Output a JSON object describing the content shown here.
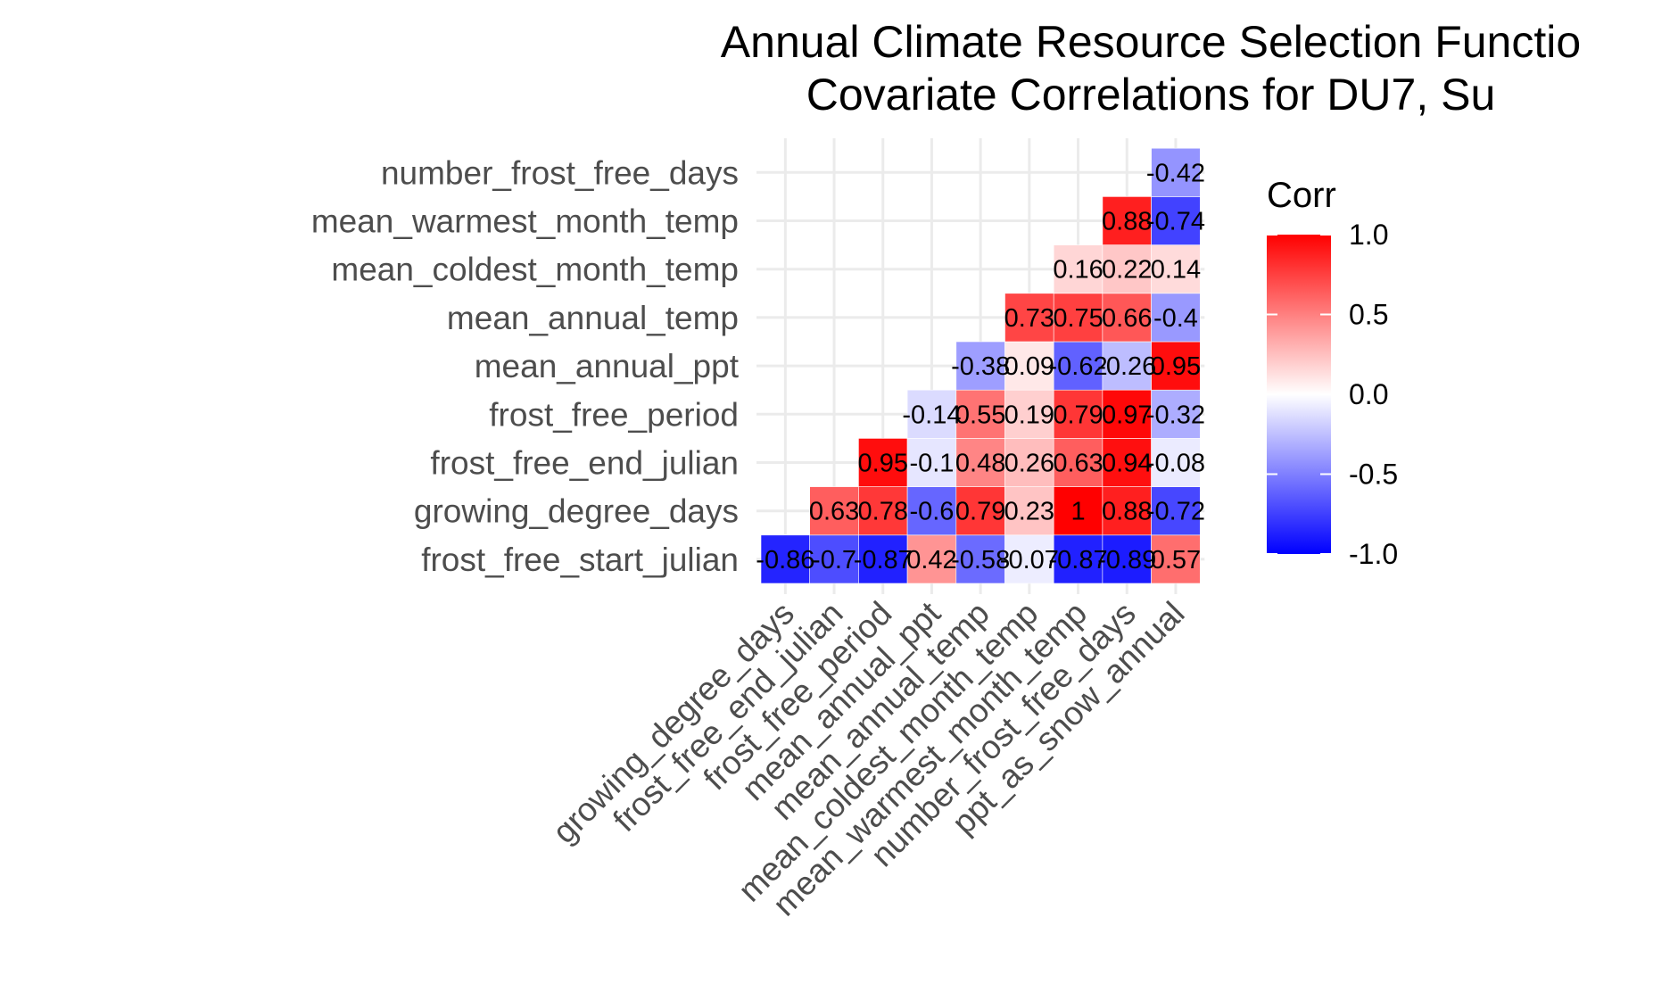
{
  "chart_data": {
    "type": "heatmap",
    "title_lines": [
      "Annual Climate Resource Selection Functio",
      "Covariate Correlations for DU7, Su"
    ],
    "x_categories": [
      "growing_degree_days",
      "frost_free_end_julian",
      "frost_free_period",
      "mean_annual_ppt",
      "mean_annual_temp",
      "mean_coldest_month_temp",
      "mean_warmest_month_temp",
      "number_frost_free_days",
      "ppt_as_snow_annual"
    ],
    "y_categories": [
      "frost_free_start_julian",
      "growing_degree_days",
      "frost_free_end_julian",
      "frost_free_period",
      "mean_annual_ppt",
      "mean_annual_temp",
      "mean_coldest_month_temp",
      "mean_warmest_month_temp",
      "number_frost_free_days"
    ],
    "cells": [
      {
        "row": 0,
        "col": 0,
        "value": -0.86,
        "label": "-0.86"
      },
      {
        "row": 0,
        "col": 1,
        "value": -0.7,
        "label": "-0.7"
      },
      {
        "row": 0,
        "col": 2,
        "value": -0.87,
        "label": "-0.87"
      },
      {
        "row": 0,
        "col": 3,
        "value": 0.42,
        "label": "0.42"
      },
      {
        "row": 0,
        "col": 4,
        "value": -0.58,
        "label": "-0.58"
      },
      {
        "row": 0,
        "col": 5,
        "value": -0.07,
        "label": "-0.07"
      },
      {
        "row": 0,
        "col": 6,
        "value": -0.87,
        "label": "-0.87"
      },
      {
        "row": 0,
        "col": 7,
        "value": -0.89,
        "label": "-0.89"
      },
      {
        "row": 0,
        "col": 8,
        "value": 0.57,
        "label": "0.57"
      },
      {
        "row": 1,
        "col": 1,
        "value": 0.63,
        "label": "0.63"
      },
      {
        "row": 1,
        "col": 2,
        "value": 0.78,
        "label": "0.78"
      },
      {
        "row": 1,
        "col": 3,
        "value": -0.6,
        "label": "-0.6"
      },
      {
        "row": 1,
        "col": 4,
        "value": 0.79,
        "label": "0.79"
      },
      {
        "row": 1,
        "col": 5,
        "value": 0.23,
        "label": "0.23"
      },
      {
        "row": 1,
        "col": 6,
        "value": 1,
        "label": "1"
      },
      {
        "row": 1,
        "col": 7,
        "value": 0.88,
        "label": "0.88"
      },
      {
        "row": 1,
        "col": 8,
        "value": -0.72,
        "label": "-0.72"
      },
      {
        "row": 2,
        "col": 2,
        "value": 0.95,
        "label": "0.95"
      },
      {
        "row": 2,
        "col": 3,
        "value": -0.1,
        "label": "-0.1"
      },
      {
        "row": 2,
        "col": 4,
        "value": 0.48,
        "label": "0.48"
      },
      {
        "row": 2,
        "col": 5,
        "value": 0.26,
        "label": "0.26"
      },
      {
        "row": 2,
        "col": 6,
        "value": 0.63,
        "label": "0.63"
      },
      {
        "row": 2,
        "col": 7,
        "value": 0.94,
        "label": "0.94"
      },
      {
        "row": 2,
        "col": 8,
        "value": -0.08,
        "label": "-0.08"
      },
      {
        "row": 3,
        "col": 3,
        "value": -0.14,
        "label": "-0.14"
      },
      {
        "row": 3,
        "col": 4,
        "value": 0.55,
        "label": "0.55"
      },
      {
        "row": 3,
        "col": 5,
        "value": 0.19,
        "label": "0.19"
      },
      {
        "row": 3,
        "col": 6,
        "value": 0.79,
        "label": "0.79"
      },
      {
        "row": 3,
        "col": 7,
        "value": 0.97,
        "label": "0.97"
      },
      {
        "row": 3,
        "col": 8,
        "value": -0.32,
        "label": "-0.32"
      },
      {
        "row": 4,
        "col": 4,
        "value": -0.38,
        "label": "-0.38"
      },
      {
        "row": 4,
        "col": 5,
        "value": 0.09,
        "label": "0.09"
      },
      {
        "row": 4,
        "col": 6,
        "value": -0.62,
        "label": "-0.62"
      },
      {
        "row": 4,
        "col": 7,
        "value": -0.26,
        "label": "-0.26"
      },
      {
        "row": 4,
        "col": 8,
        "value": 0.95,
        "label": "0.95"
      },
      {
        "row": 5,
        "col": 5,
        "value": 0.73,
        "label": "0.73"
      },
      {
        "row": 5,
        "col": 6,
        "value": 0.75,
        "label": "0.75"
      },
      {
        "row": 5,
        "col": 7,
        "value": 0.66,
        "label": "0.66"
      },
      {
        "row": 5,
        "col": 8,
        "value": -0.4,
        "label": "-0.4"
      },
      {
        "row": 6,
        "col": 6,
        "value": 0.16,
        "label": "0.16"
      },
      {
        "row": 6,
        "col": 7,
        "value": 0.22,
        "label": "0.22"
      },
      {
        "row": 6,
        "col": 8,
        "value": 0.14,
        "label": "0.14"
      },
      {
        "row": 7,
        "col": 7,
        "value": 0.88,
        "label": "0.88"
      },
      {
        "row": 7,
        "col": 8,
        "value": -0.74,
        "label": "-0.74"
      },
      {
        "row": 8,
        "col": 8,
        "value": -0.42,
        "label": "-0.42"
      }
    ],
    "legend": {
      "title": "Corr",
      "ticks": [
        {
          "value": 1.0,
          "label": "1.0"
        },
        {
          "value": 0.5,
          "label": "0.5"
        },
        {
          "value": 0.0,
          "label": "0.0"
        },
        {
          "value": -0.5,
          "label": "-0.5"
        },
        {
          "value": -1.0,
          "label": "-1.0"
        }
      ],
      "range": [
        -1,
        1
      ],
      "placement": "right"
    },
    "colors": {
      "low": "#0000ff",
      "mid": "#ffffff",
      "high": "#ff0000",
      "grid": "#ebebeb",
      "tick_text": "#4d4d4d"
    },
    "grid": true
  }
}
